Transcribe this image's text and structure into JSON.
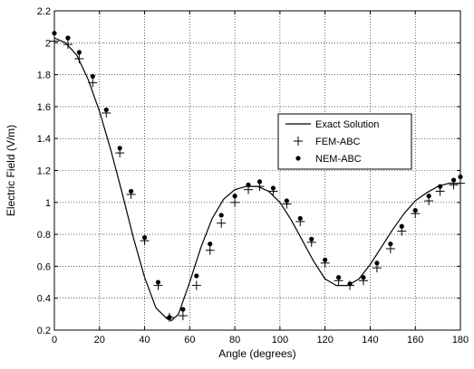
{
  "chart_data": {
    "type": "line",
    "title": "",
    "xlabel": "Angle (degrees)",
    "ylabel": "Electric Field (V/m)",
    "xlim": [
      0,
      180
    ],
    "ylim": [
      0.2,
      2.2
    ],
    "xticks": [
      0,
      20,
      40,
      60,
      80,
      100,
      120,
      140,
      160,
      180
    ],
    "yticks": [
      0.2,
      0.4,
      0.6,
      0.8,
      1.0,
      1.2,
      1.4,
      1.6,
      1.8,
      2.0,
      2.2
    ],
    "xtick_labels": [
      "0",
      "20",
      "40",
      "60",
      "80",
      "100",
      "120",
      "140",
      "160",
      "180"
    ],
    "ytick_labels": [
      "0.2",
      "0.4",
      "0.6",
      "0.8",
      "1",
      "1.2",
      "1.4",
      "1.6",
      "1.8",
      "2",
      "2.2"
    ],
    "grid": true,
    "legend_position": "right",
    "series": [
      {
        "name": "Exact Solution",
        "marker": "line",
        "x": [
          0,
          5,
          10,
          15,
          20,
          25,
          30,
          35,
          40,
          45,
          50,
          52,
          55,
          60,
          65,
          70,
          75,
          80,
          85,
          90,
          95,
          100,
          105,
          110,
          115,
          120,
          125,
          130,
          135,
          140,
          145,
          150,
          155,
          160,
          165,
          170,
          175,
          180
        ],
        "y": [
          2.03,
          2.0,
          1.92,
          1.77,
          1.57,
          1.33,
          1.06,
          0.78,
          0.53,
          0.34,
          0.27,
          0.26,
          0.3,
          0.5,
          0.72,
          0.9,
          1.02,
          1.08,
          1.1,
          1.1,
          1.07,
          1.0,
          0.89,
          0.76,
          0.63,
          0.52,
          0.48,
          0.48,
          0.52,
          0.61,
          0.72,
          0.83,
          0.93,
          1.01,
          1.06,
          1.1,
          1.12,
          1.12
        ]
      },
      {
        "name": "FEM-ABC",
        "marker": "+",
        "x": [
          0,
          6,
          11,
          17,
          23,
          29,
          34,
          40,
          46,
          51,
          57,
          63,
          69,
          74,
          80,
          86,
          91,
          97,
          103,
          109,
          114,
          120,
          126,
          131,
          137,
          143,
          149,
          154,
          160,
          166,
          171,
          177,
          180
        ],
        "y": [
          2.01,
          1.99,
          1.9,
          1.75,
          1.56,
          1.31,
          1.05,
          0.76,
          0.48,
          0.28,
          0.29,
          0.48,
          0.7,
          0.87,
          1.0,
          1.08,
          1.1,
          1.07,
          0.99,
          0.88,
          0.75,
          0.62,
          0.51,
          0.48,
          0.51,
          0.59,
          0.71,
          0.82,
          0.93,
          1.01,
          1.07,
          1.11,
          1.12
        ]
      },
      {
        "name": "NEM-ABC",
        "marker": "dot",
        "x": [
          0,
          6,
          11,
          17,
          23,
          29,
          34,
          40,
          46,
          51,
          57,
          63,
          69,
          74,
          80,
          86,
          91,
          97,
          103,
          109,
          114,
          120,
          126,
          131,
          137,
          143,
          149,
          154,
          160,
          166,
          171,
          177,
          180
        ],
        "y": [
          2.06,
          2.03,
          1.94,
          1.79,
          1.58,
          1.34,
          1.07,
          0.78,
          0.5,
          0.28,
          0.33,
          0.54,
          0.74,
          0.92,
          1.04,
          1.11,
          1.13,
          1.09,
          1.01,
          0.9,
          0.77,
          0.64,
          0.53,
          0.49,
          0.53,
          0.62,
          0.74,
          0.85,
          0.95,
          1.04,
          1.1,
          1.14,
          1.16
        ]
      }
    ]
  }
}
